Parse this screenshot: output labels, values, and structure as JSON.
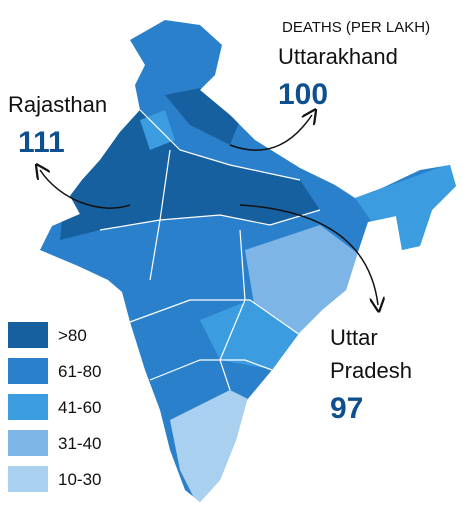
{
  "heading": "DEATHS (PER LAKH)",
  "callouts": [
    {
      "lines": [
        "Uttarakhand"
      ],
      "value": 100
    },
    {
      "lines": [
        "Rajasthan"
      ],
      "value": 111
    },
    {
      "lines": [
        "Uttar",
        "Pradesh"
      ],
      "value": 97
    }
  ],
  "legend": [
    {
      "label": ">80",
      "color": "#17609f"
    },
    {
      "label": "61-80",
      "color": "#2a80cb"
    },
    {
      "label": "41-60",
      "color": "#3b9ddf"
    },
    {
      "label": "31-40",
      "color": "#7db6e6"
    },
    {
      "label": "10-30",
      "color": "#aad0f0"
    }
  ]
}
